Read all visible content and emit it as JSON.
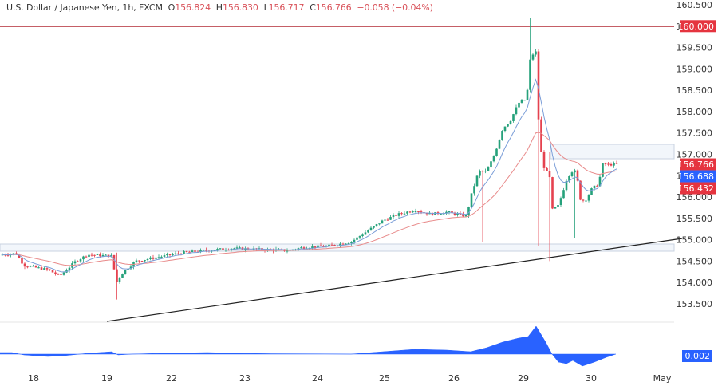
{
  "header": {
    "symbol": "U.S. Dollar / Japanese Yen, 1h, FXCM",
    "open_label": "O",
    "open": "156.824",
    "high_label": "H",
    "high": "156.830",
    "low_label": "L",
    "low": "156.717",
    "close_label": "C",
    "close": "156.766",
    "change": "−0.058 (−0.04%)"
  },
  "price_axis": {
    "ticks": [
      "160.500",
      "160.000",
      "159.500",
      "159.000",
      "158.500",
      "158.000",
      "157.500",
      "157.000",
      "156.500",
      "156.000",
      "155.500",
      "155.000",
      "154.500",
      "154.000",
      "153.500"
    ],
    "badges": [
      {
        "label": "160.000",
        "color": "#e5343f",
        "price": 160.0
      },
      {
        "label": "156.766",
        "color": "#e5343f",
        "price": 156.766
      },
      {
        "label": "156.688",
        "color": "#2962ff",
        "price": 156.688
      },
      {
        "label": "156.432",
        "color": "#e5343f",
        "price": 156.432
      }
    ]
  },
  "time_axis": {
    "labels": [
      "18",
      "19",
      "22",
      "23",
      "24",
      "25",
      "26",
      "29",
      "30",
      "May"
    ]
  },
  "oscillator": {
    "value_badge": "−0.002",
    "color": "#2962ff"
  },
  "colors": {
    "up": "#26a17b",
    "down": "#e5424f",
    "ma_fast": "#7b9ed8",
    "ma_slow": "#e88a8a",
    "resistance": "#b22833"
  },
  "chart_data": {
    "type": "candlestick",
    "title": "U.S. Dollar / Japanese Yen, 1h, FXCM",
    "xlabel": "",
    "ylabel": "",
    "ylim": [
      153.2,
      160.6
    ],
    "x_ticks": [
      "18",
      "19",
      "22",
      "23",
      "24",
      "25",
      "26",
      "29",
      "30",
      "May"
    ],
    "annotations": [
      {
        "type": "horizontal_line",
        "price": 160.0,
        "label": "160.000"
      },
      {
        "type": "zone",
        "from": 154.75,
        "to": 154.95,
        "label": "support zone"
      },
      {
        "type": "zone",
        "from": 156.95,
        "to": 157.25,
        "label": "resistance zone"
      },
      {
        "type": "trendline",
        "from": {
          "date": "19",
          "price": 153.3
        },
        "to": {
          "date": "May",
          "price": 155.0
        }
      }
    ],
    "key_points": [
      {
        "date": "18",
        "price": 154.65
      },
      {
        "date": "19 low",
        "price": 153.6
      },
      {
        "date": "22",
        "price": 154.65
      },
      {
        "date": "23",
        "price": 154.8
      },
      {
        "date": "24",
        "price": 154.85
      },
      {
        "date": "25",
        "price": 155.7
      },
      {
        "date": "26",
        "price": 155.6
      },
      {
        "date": "29 high",
        "price": 160.2
      },
      {
        "date": "29 low",
        "price": 154.5
      },
      {
        "date": "30",
        "price": 156.3
      },
      {
        "date": "last",
        "price": 156.766
      }
    ],
    "moving_averages": [
      {
        "name": "fast MA",
        "value": 156.688
      },
      {
        "name": "slow MA",
        "value": 156.432
      }
    ],
    "oscillator_last": -0.002
  }
}
